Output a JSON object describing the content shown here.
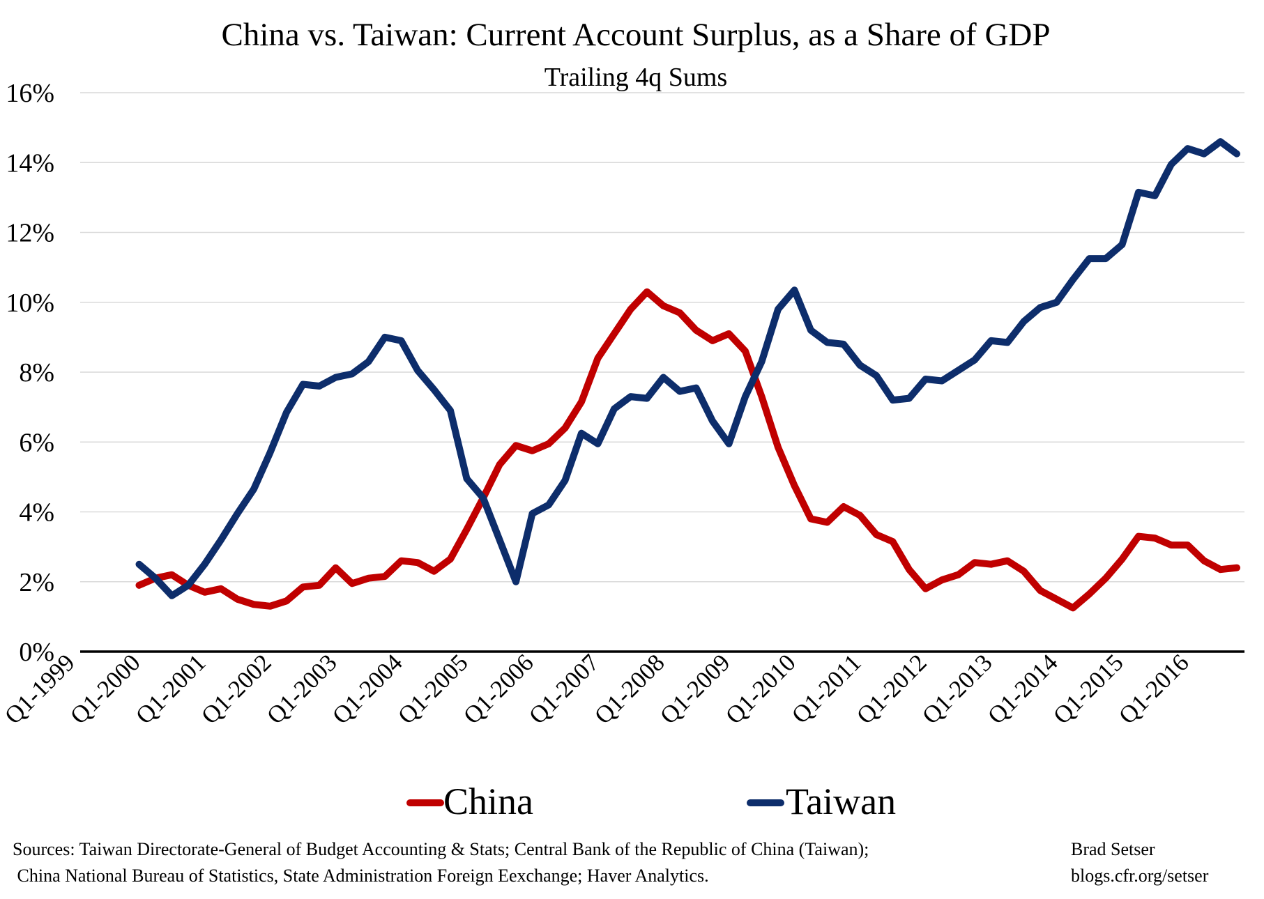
{
  "chart_data": {
    "type": "line",
    "title": "China vs. Taiwan: Current Account Surplus, as a Share of GDP",
    "subtitle": "Trailing 4q Sums",
    "xlabel": "",
    "ylabel": "",
    "ylim": [
      0,
      16
    ],
    "y_ticks": [
      0,
      2,
      4,
      6,
      8,
      10,
      12,
      14,
      16
    ],
    "y_tick_labels": [
      "0%",
      "2%",
      "4%",
      "6%",
      "8%",
      "10%",
      "12%",
      "14%",
      "16%"
    ],
    "x_range": [
      "Q1-1999",
      "Q3-2016"
    ],
    "x_tick_labels": [
      "Q1-1999",
      "Q1-2000",
      "Q1-2001",
      "Q1-2002",
      "Q1-2003",
      "Q1-2004",
      "Q1-2005",
      "Q1-2006",
      "Q1-2007",
      "Q1-2008",
      "Q1-2009",
      "Q1-2010",
      "Q1-2011",
      "Q1-2012",
      "Q1-2013",
      "Q1-2014",
      "Q1-2015",
      "Q1-2016"
    ],
    "grid": true,
    "legend_position": "bottom",
    "x": [
      "Q4-1999",
      "Q1-2000",
      "Q2-2000",
      "Q3-2000",
      "Q4-2000",
      "Q1-2001",
      "Q2-2001",
      "Q3-2001",
      "Q4-2001",
      "Q1-2002",
      "Q2-2002",
      "Q3-2002",
      "Q4-2002",
      "Q1-2003",
      "Q2-2003",
      "Q3-2003",
      "Q4-2003",
      "Q1-2004",
      "Q2-2004",
      "Q3-2004",
      "Q4-2004",
      "Q1-2005",
      "Q2-2005",
      "Q3-2005",
      "Q4-2005",
      "Q1-2006",
      "Q2-2006",
      "Q3-2006",
      "Q4-2006",
      "Q1-2007",
      "Q2-2007",
      "Q3-2007",
      "Q4-2007",
      "Q1-2008",
      "Q2-2008",
      "Q3-2008",
      "Q4-2008",
      "Q1-2009",
      "Q2-2009",
      "Q3-2009",
      "Q4-2009",
      "Q1-2010",
      "Q2-2010",
      "Q3-2010",
      "Q4-2010",
      "Q1-2011",
      "Q2-2011",
      "Q3-2011",
      "Q4-2011",
      "Q1-2012",
      "Q2-2012",
      "Q3-2012",
      "Q4-2012",
      "Q1-2013",
      "Q2-2013",
      "Q3-2013",
      "Q4-2013",
      "Q1-2014",
      "Q2-2014",
      "Q3-2014",
      "Q4-2014",
      "Q1-2015",
      "Q2-2015",
      "Q3-2015",
      "Q4-2015",
      "Q1-2016",
      "Q2-2016",
      "Q3-2016"
    ],
    "series": [
      {
        "name": "China",
        "color": "#c00000",
        "values": [
          1.9,
          2.1,
          2.2,
          1.9,
          1.7,
          1.8,
          1.5,
          1.35,
          1.3,
          1.45,
          1.85,
          1.9,
          2.4,
          1.95,
          2.1,
          2.15,
          2.6,
          2.55,
          2.3,
          2.65,
          3.5,
          4.4,
          5.35,
          5.9,
          5.75,
          5.95,
          6.4,
          7.15,
          8.4,
          9.1,
          9.8,
          10.3,
          9.9,
          9.7,
          9.2,
          8.9,
          9.1,
          8.6,
          7.3,
          5.85,
          4.75,
          3.8,
          3.7,
          4.15,
          3.9,
          3.35,
          3.15,
          2.35,
          1.8,
          2.05,
          2.2,
          2.55,
          2.5,
          2.6,
          2.3,
          1.75,
          1.5,
          1.25,
          1.65,
          2.1,
          2.65,
          3.3,
          3.25,
          3.05,
          3.05,
          2.6,
          2.35,
          2.4
        ]
      },
      {
        "name": "Taiwan",
        "color": "#0d2d6b",
        "values": [
          2.5,
          2.1,
          1.6,
          1.9,
          2.5,
          3.2,
          3.95,
          4.65,
          5.7,
          6.85,
          7.65,
          7.6,
          7.85,
          7.95,
          8.3,
          9.0,
          8.9,
          8.05,
          7.5,
          6.9,
          4.95,
          4.4,
          3.2,
          2.0,
          3.95,
          4.2,
          4.9,
          6.25,
          5.95,
          6.95,
          7.3,
          7.25,
          7.85,
          7.45,
          7.55,
          6.6,
          5.95,
          7.3,
          8.3,
          9.8,
          10.35,
          9.2,
          8.85,
          8.8,
          8.2,
          7.9,
          7.2,
          7.25,
          7.8,
          7.75,
          8.05,
          8.35,
          8.9,
          8.85,
          9.45,
          9.85,
          10.0,
          10.65,
          11.25,
          11.25,
          11.65,
          13.15,
          13.05,
          13.95,
          14.4,
          14.25,
          14.6,
          14.25
        ]
      }
    ],
    "legend": [
      "China",
      "Taiwan"
    ]
  },
  "footer": {
    "sources_line1": "Sources: Taiwan Directorate-General  of Budget Accounting & Stats; Central Bank of the Republic of China (Taiwan);",
    "sources_line2": " China National Bureau of Statistics, State Administration Foreign Eexchange; Haver Analytics.",
    "author": "Brad Setser",
    "blog": "blogs.cfr.org/setser"
  }
}
